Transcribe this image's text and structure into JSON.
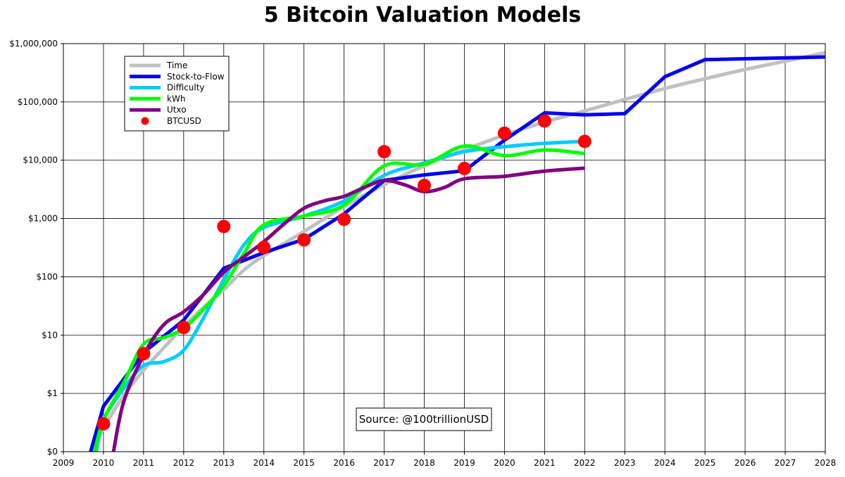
{
  "chart_data": {
    "type": "line",
    "title": "5 Bitcoin Valuation Models",
    "xlabel": "",
    "ylabel": "",
    "yscale": "log",
    "xlim": [
      2009,
      2028
    ],
    "ylim": [
      0.1,
      1000000
    ],
    "grid": true,
    "x_ticks": [
      2009,
      2010,
      2011,
      2012,
      2013,
      2014,
      2015,
      2016,
      2017,
      2018,
      2019,
      2020,
      2021,
      2022,
      2023,
      2024,
      2025,
      2026,
      2027,
      2028
    ],
    "x_tick_labels": [
      "2009",
      "2010",
      "2011",
      "2012",
      "2013",
      "2014",
      "2015",
      "2016",
      "2017",
      "2018",
      "2019",
      "2020",
      "2021",
      "2022",
      "2023",
      "2024",
      "2025",
      "2026",
      "2027",
      "2028"
    ],
    "y_ticks": [
      0.1,
      1,
      10,
      100,
      1000,
      10000,
      100000,
      1000000
    ],
    "y_tick_labels": [
      "$0",
      "$1",
      "$10",
      "$100",
      "$1,000",
      "$10,000",
      "$100,000",
      "$1,000,000"
    ],
    "legend_position": "top-left",
    "annotation": "Source: @100trillionUSD",
    "series": [
      {
        "name": "Time",
        "color": "#c0c0c0",
        "x": [
          2009.75,
          2010,
          2010.5,
          2011,
          2011.5,
          2012,
          2012.5,
          2013,
          2013.5,
          2014,
          2015,
          2016,
          2017,
          2018,
          2019,
          2020,
          2021,
          2022,
          2023,
          2024,
          2025,
          2026,
          2027,
          2028
        ],
        "values": [
          0.1,
          0.25,
          0.9,
          2.5,
          6,
          14,
          30,
          60,
          130,
          230,
          600,
          1600,
          3800,
          8000,
          15000,
          27000,
          45000,
          70000,
          110000,
          170000,
          250000,
          360000,
          500000,
          700000
        ]
      },
      {
        "name": "Stock-to-Flow",
        "color": "#0000ee",
        "x": [
          2009.68,
          2010,
          2011,
          2012,
          2013,
          2014,
          2015,
          2016,
          2017,
          2018,
          2019,
          2020,
          2021,
          2022,
          2023,
          2024,
          2025,
          2026,
          2027,
          2028
        ],
        "values": [
          0.1,
          0.6,
          5,
          18,
          140,
          260,
          440,
          1200,
          4500,
          5600,
          6600,
          22000,
          65000,
          60000,
          63000,
          270000,
          530000,
          550000,
          570000,
          590000
        ]
      },
      {
        "name": "Difficulty",
        "color": "#00ccff",
        "x": [
          2009.82,
          2010,
          2010.5,
          2011,
          2011.5,
          2012,
          2012.5,
          2013,
          2013.5,
          2014,
          2015,
          2016,
          2017,
          2018,
          2019,
          2020,
          2021,
          2022
        ],
        "values": [
          0.1,
          0.35,
          1.2,
          3.0,
          3.5,
          5.5,
          20,
          90,
          350,
          700,
          1100,
          2000,
          5500,
          9000,
          14000,
          17000,
          19500,
          21000
        ]
      },
      {
        "name": "kWh",
        "color": "#00ff00",
        "x": [
          2009.78,
          2010,
          2010.5,
          2011,
          2011.5,
          2012,
          2012.5,
          2013,
          2013.5,
          2014,
          2015,
          2016,
          2017,
          2018,
          2019,
          2020,
          2021,
          2022
        ],
        "values": [
          0.1,
          0.35,
          1.5,
          7,
          9,
          13,
          28,
          70,
          250,
          780,
          1100,
          1700,
          8000,
          8500,
          17500,
          12000,
          15000,
          13000
        ]
      },
      {
        "name": "Utxo",
        "color": "#800080",
        "x": [
          2010.25,
          2010.5,
          2011,
          2011.5,
          2012,
          2012.5,
          2013,
          2013.5,
          2014,
          2014.5,
          2015,
          2015.5,
          2016,
          2016.5,
          2017,
          2017.5,
          2018,
          2018.5,
          2019,
          2020,
          2021,
          2022
        ],
        "values": [
          0.1,
          0.7,
          4.5,
          15,
          25,
          50,
          120,
          220,
          400,
          800,
          1500,
          2000,
          2400,
          3400,
          4500,
          3800,
          2900,
          3400,
          4800,
          5300,
          6500,
          7300
        ]
      },
      {
        "name": "BTCUSD",
        "color": "#ff0000",
        "marker": "circle",
        "x": [
          2010,
          2011,
          2012,
          2013,
          2014,
          2015,
          2016,
          2017,
          2018,
          2019,
          2020,
          2021,
          2022
        ],
        "values": [
          0.3,
          4.8,
          13.5,
          730,
          320,
          430,
          970,
          14000,
          3700,
          7200,
          29000,
          47000,
          21000
        ]
      }
    ]
  }
}
